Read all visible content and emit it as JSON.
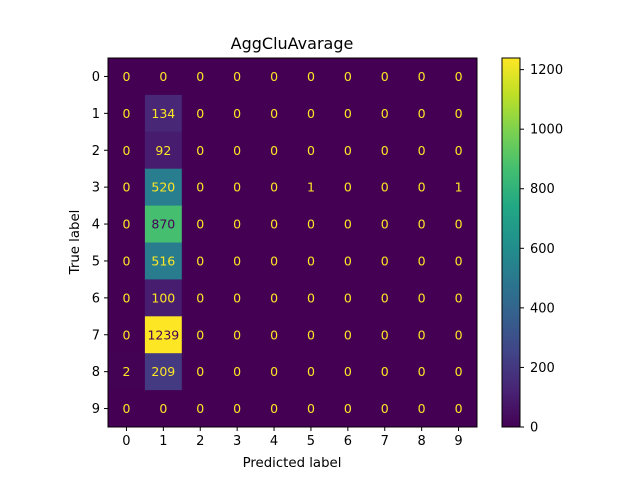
{
  "chart_data": {
    "type": "heatmap",
    "title": "AggCluAvarage",
    "xlabel": "Predicted label",
    "ylabel": "True label",
    "x_ticks": [
      "0",
      "1",
      "2",
      "3",
      "4",
      "5",
      "6",
      "7",
      "8",
      "9"
    ],
    "y_ticks": [
      "0",
      "1",
      "2",
      "3",
      "4",
      "5",
      "6",
      "7",
      "8",
      "9"
    ],
    "matrix": [
      [
        0,
        0,
        0,
        0,
        0,
        0,
        0,
        0,
        0,
        0
      ],
      [
        0,
        134,
        0,
        0,
        0,
        0,
        0,
        0,
        0,
        0
      ],
      [
        0,
        92,
        0,
        0,
        0,
        0,
        0,
        0,
        0,
        0
      ],
      [
        0,
        520,
        0,
        0,
        0,
        1,
        0,
        0,
        0,
        1
      ],
      [
        0,
        870,
        0,
        0,
        0,
        0,
        0,
        0,
        0,
        0
      ],
      [
        0,
        516,
        0,
        0,
        0,
        0,
        0,
        0,
        0,
        0
      ],
      [
        0,
        100,
        0,
        0,
        0,
        0,
        0,
        0,
        0,
        0
      ],
      [
        0,
        1239,
        0,
        0,
        0,
        0,
        0,
        0,
        0,
        0
      ],
      [
        2,
        209,
        0,
        0,
        0,
        0,
        0,
        0,
        0,
        0
      ],
      [
        0,
        0,
        0,
        0,
        0,
        0,
        0,
        0,
        0,
        0
      ]
    ],
    "colormap": "viridis",
    "color_range": [
      0,
      1239
    ],
    "colorbar_ticks": [
      0,
      200,
      400,
      600,
      800,
      1000,
      1200
    ],
    "grid": false
  }
}
